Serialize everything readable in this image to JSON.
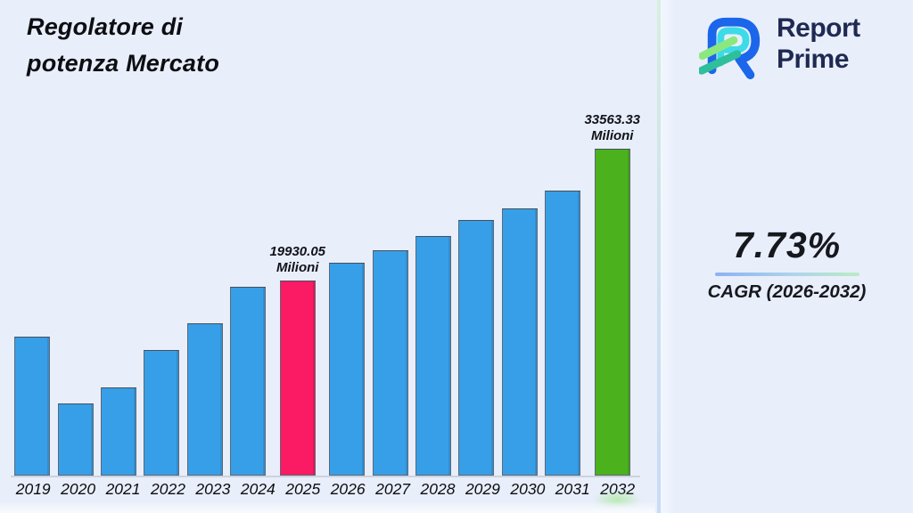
{
  "header": {
    "title_line1": "Regolatore di",
    "title_line2": "potenza Mercato"
  },
  "brand": {
    "name_line1": "Report",
    "name_line2": "Prime",
    "logo_colors": {
      "blue": "#1b66ea",
      "cyan": "#3ddbe8",
      "light_green": "#8be87e",
      "teal": "#2fbf9b",
      "text_navy": "#1e2a52"
    }
  },
  "stats": {
    "cagr_value": "7.73%",
    "cagr_label": "CAGR (2026-2032)"
  },
  "chart_data": {
    "type": "bar",
    "title": "Regolatore di potenza Mercato",
    "unit": "Milioni",
    "categories": [
      "2019",
      "2020",
      "2021",
      "2022",
      "2023",
      "2024",
      "2025",
      "2026",
      "2027",
      "2028",
      "2029",
      "2030",
      "2031",
      "2032"
    ],
    "values": [
      14170,
      7270,
      8920,
      12790,
      15550,
      19370,
      19930.05,
      21800,
      23090,
      24560,
      26220,
      27420,
      29260,
      33563.33
    ],
    "annotations": [
      {
        "category": "2025",
        "line1": "19930.05",
        "line2": "Milioni"
      },
      {
        "category": "2032",
        "line1": "33563.33",
        "line2": "Milioni"
      }
    ],
    "bar_color": "#379fe8",
    "highlights": {
      "2025": "#fb1a64",
      "2032": "#4bb21d"
    },
    "ylim": [
      0,
      36800
    ],
    "grid": false,
    "legend": false,
    "xlabel": "",
    "ylabel": ""
  },
  "colors": {
    "background": "#e9eefb",
    "axis_line": "#ccd3df",
    "bar_border": "#5d6876",
    "separator_top": "#d5f0de",
    "separator_bottom": "#c8dcf7",
    "underline_left": "#8cb2f2",
    "underline_right": "#b9ecc4"
  }
}
